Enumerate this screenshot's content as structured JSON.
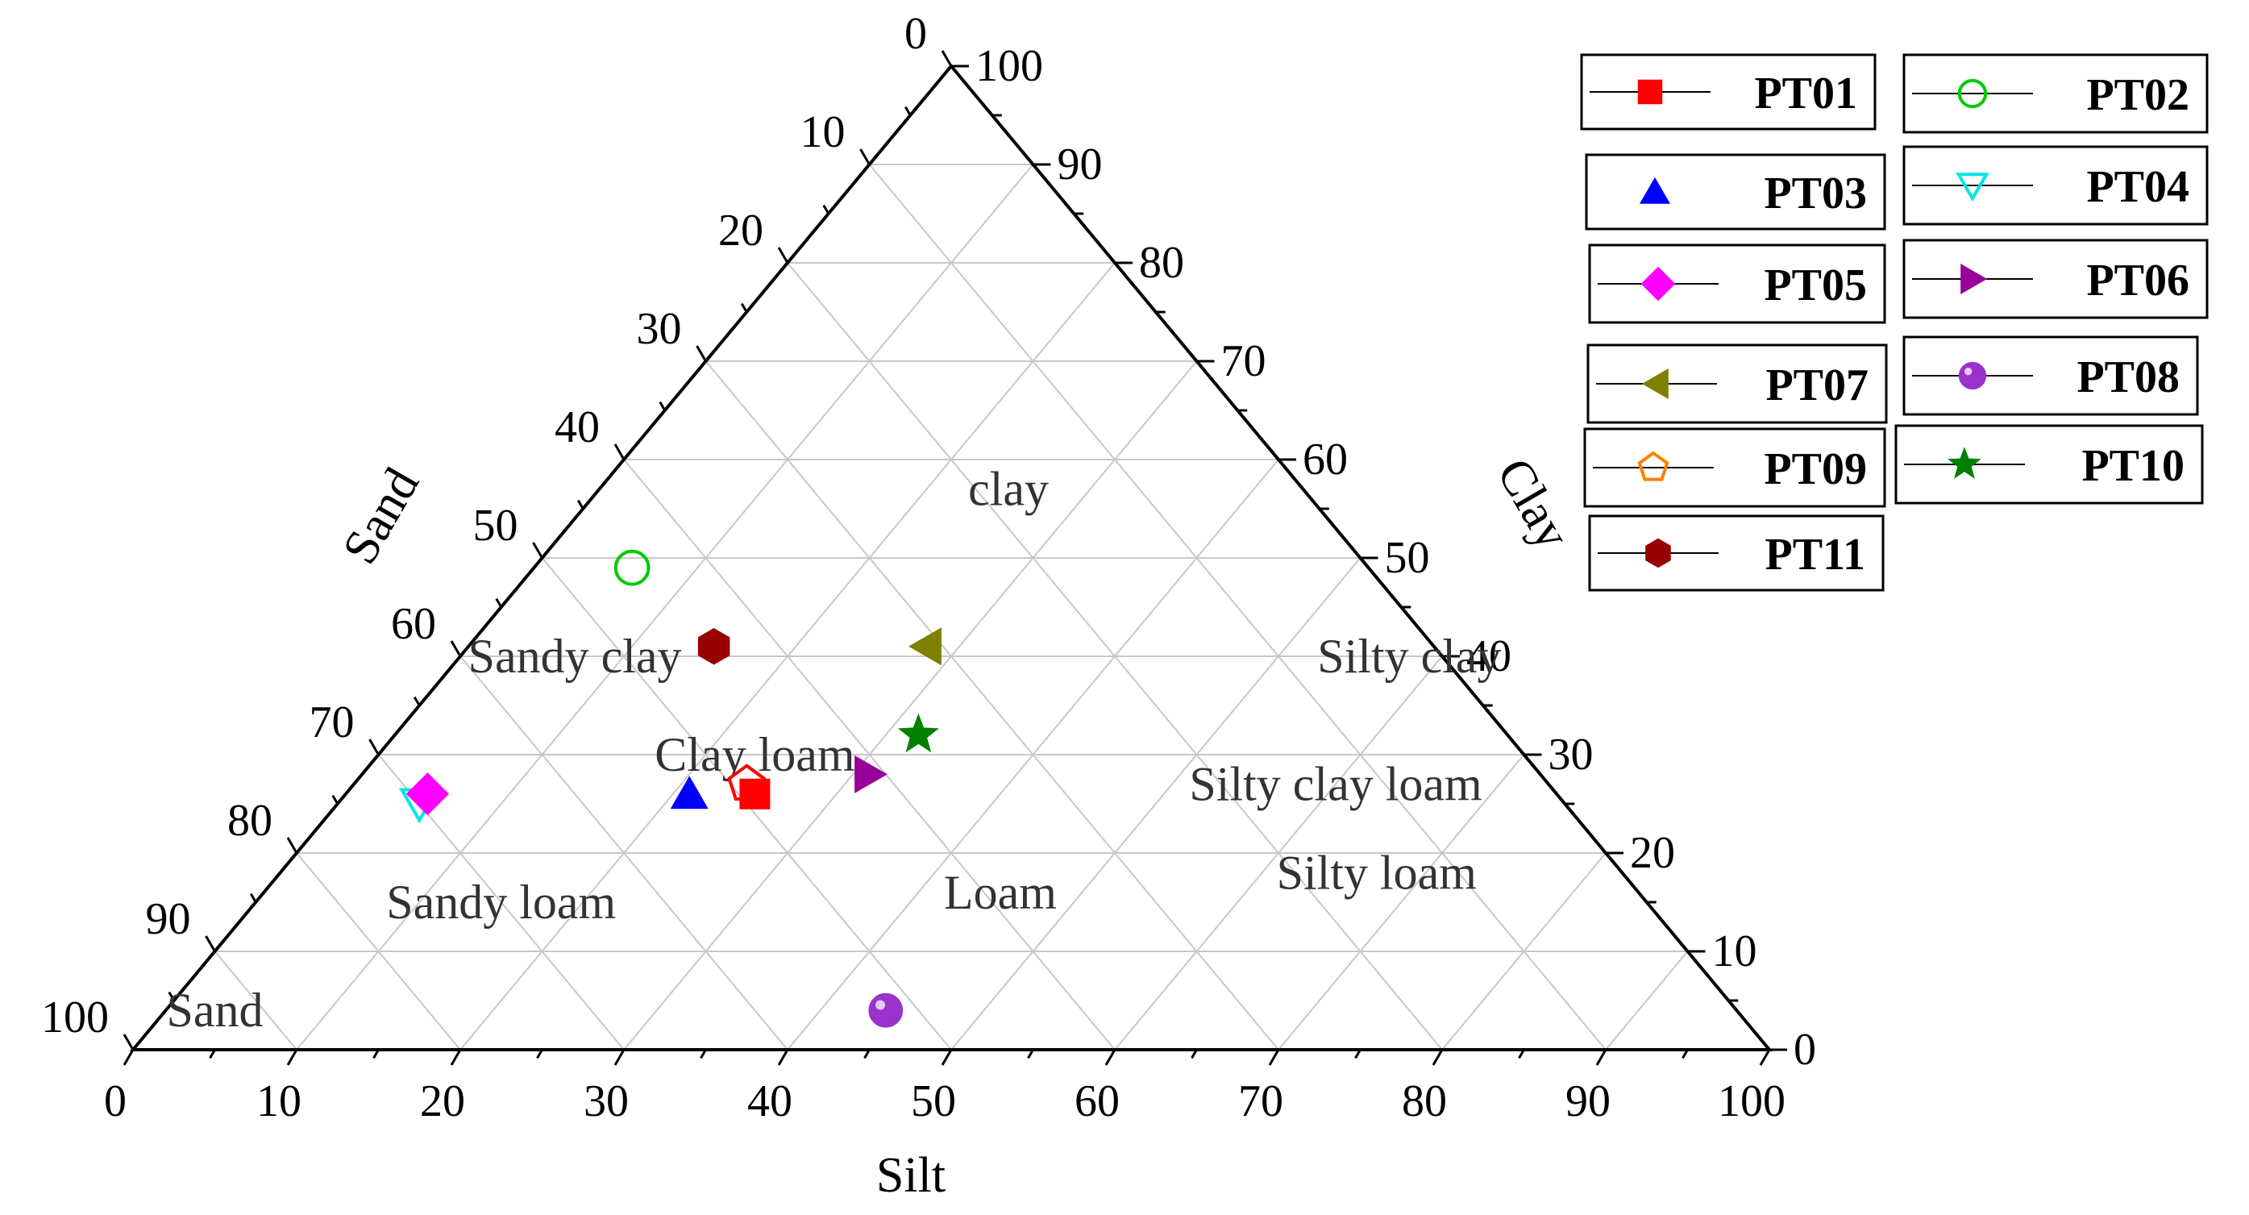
{
  "chart_data": {
    "type": "scatter",
    "subtype": "ternary",
    "axes": {
      "bottom": {
        "label": "Silt",
        "ticks": [
          "0",
          "10",
          "20",
          "30",
          "40",
          "50",
          "60",
          "70",
          "80",
          "90",
          "100"
        ]
      },
      "left": {
        "label": "Sand",
        "ticks": [
          "0",
          "10",
          "20",
          "30",
          "40",
          "50",
          "60",
          "70",
          "80",
          "90",
          "100"
        ]
      },
      "right": {
        "label": "Clay",
        "ticks": [
          "0",
          "10",
          "20",
          "30",
          "40",
          "50",
          "60",
          "70",
          "80",
          "90",
          "100"
        ]
      }
    },
    "grid": true,
    "legend_position": "top-right",
    "regions": [
      {
        "name": "clay",
        "silt": 25,
        "clay": 57
      },
      {
        "name": "Sandy clay",
        "silt": 7,
        "clay": 40
      },
      {
        "name": "Silty clay",
        "silt": 58,
        "clay": 40
      },
      {
        "name": "Clay loam",
        "silt": 23,
        "clay": 30
      },
      {
        "name": "Silty clay loam",
        "silt": 60,
        "clay": 27
      },
      {
        "name": "Silty loam",
        "silt": 67,
        "clay": 18
      },
      {
        "name": "Loam",
        "silt": 45,
        "clay": 16
      },
      {
        "name": "Sandy loam",
        "silt": 15,
        "clay": 15
      },
      {
        "name": "Sand",
        "silt": 3,
        "clay": 4
      }
    ],
    "series": [
      {
        "name": "PT01",
        "marker": "square",
        "color": "#ff0000",
        "filled": true,
        "sand": 49,
        "silt": 25,
        "clay": 26
      },
      {
        "name": "PT02",
        "marker": "circle",
        "color": "#00cc00",
        "filled": false,
        "sand": 45,
        "silt": 6,
        "clay": 49
      },
      {
        "name": "PT03",
        "marker": "triangle-up",
        "color": "#0000ff",
        "filled": true,
        "sand": 53,
        "silt": 21,
        "clay": 26
      },
      {
        "name": "PT04",
        "marker": "triangle-down",
        "color": "#00e5e5",
        "filled": false,
        "sand": 70,
        "silt": 5,
        "clay": 25
      },
      {
        "name": "PT05",
        "marker": "diamond",
        "color": "#ff00ff",
        "filled": true,
        "sand": 69,
        "silt": 5,
        "clay": 26
      },
      {
        "name": "PT06",
        "marker": "triangle-right",
        "color": "#990099",
        "filled": true,
        "sand": 41,
        "silt": 31,
        "clay": 28
      },
      {
        "name": "PT07",
        "marker": "triangle-left",
        "color": "#808000",
        "filled": true,
        "sand": 31,
        "silt": 28,
        "clay": 41
      },
      {
        "name": "PT08",
        "marker": "sphere",
        "color": "#9933cc",
        "filled": true,
        "sand": 52,
        "silt": 44,
        "clay": 4
      },
      {
        "name": "PT09",
        "marker": "pentagon",
        "color": "#ff0000",
        "legend_color": "#ff8000",
        "filled": false,
        "sand": 49,
        "silt": 24,
        "clay": 27
      },
      {
        "name": "PT10",
        "marker": "star",
        "color": "#008000",
        "filled": true,
        "sand": 36,
        "silt": 32,
        "clay": 32
      },
      {
        "name": "PT11",
        "marker": "hexagon",
        "color": "#990000",
        "filled": true,
        "sand": 44,
        "silt": 15,
        "clay": 41
      }
    ]
  }
}
